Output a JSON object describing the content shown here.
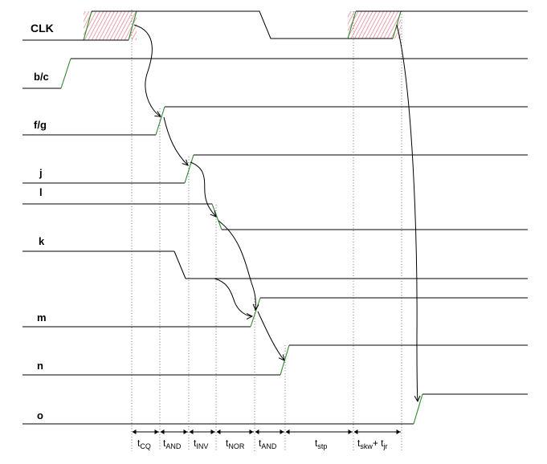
{
  "signals": [
    {
      "id": "clk",
      "label": "CLK"
    },
    {
      "id": "bc",
      "label": "b/c"
    },
    {
      "id": "fg",
      "label": "f/g"
    },
    {
      "id": "j",
      "label": "j"
    },
    {
      "id": "l",
      "label": "l"
    },
    {
      "id": "k",
      "label": "k"
    },
    {
      "id": "m",
      "label": "m"
    },
    {
      "id": "n",
      "label": "n"
    },
    {
      "id": "o",
      "label": "o"
    }
  ],
  "intervals": [
    {
      "id": "cq",
      "base": "t",
      "sub": "CQ"
    },
    {
      "id": "and1",
      "base": "t",
      "sub": "AND"
    },
    {
      "id": "inv",
      "base": "t",
      "sub": "INV"
    },
    {
      "id": "nor",
      "base": "t",
      "sub": "NOR"
    },
    {
      "id": "and2",
      "base": "t",
      "sub": "AND"
    },
    {
      "id": "stp",
      "base": "t",
      "sub": "stp"
    },
    {
      "id": "skwjr",
      "base": "t",
      "sub": "skw",
      "mid": "+ t",
      "sub2": "jr"
    }
  ],
  "colors": {
    "wave": "#000000",
    "edge": "#2f8a2f",
    "hatch": "#e0707a",
    "hatch_box": "#2f8a2f",
    "guide": "#555555"
  }
}
